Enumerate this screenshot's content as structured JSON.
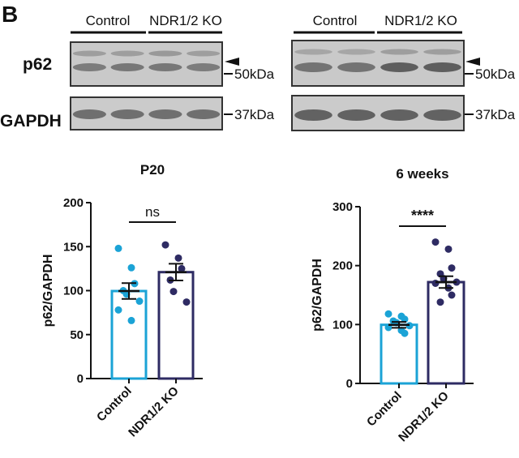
{
  "panel_label": "B",
  "blots": {
    "row_labels": [
      "p62",
      "GAPDH"
    ],
    "group_labels": [
      "Control",
      "NDR1/2 KO"
    ],
    "markers": [
      "50kDa",
      "37kDa"
    ]
  },
  "colors": {
    "control": "#1ba3d6",
    "ko": "#2e2b63",
    "axis": "#111111"
  },
  "chart_data": [
    {
      "type": "bar",
      "title": "P20",
      "ylabel": "p62/GAPDH",
      "categories": [
        "Control",
        "NDR1/2 KO"
      ],
      "values": [
        99.5,
        121
      ],
      "sem": [
        9,
        9.5
      ],
      "ylim": [
        0,
        200
      ],
      "yticks": [
        0,
        50,
        100,
        150,
        200
      ],
      "points": [
        [
          148,
          126,
          108,
          100,
          96,
          88,
          78,
          66
        ],
        [
          152,
          137,
          125,
          112,
          99,
          87
        ]
      ],
      "significance": "ns",
      "grid": false
    },
    {
      "type": "bar",
      "title": "6 weeks",
      "ylabel": "p62/GAPDH",
      "categories": [
        "Control",
        "NDR1/2 KO"
      ],
      "values": [
        99.5,
        172
      ],
      "sem": [
        5,
        10
      ],
      "ylim": [
        0,
        300
      ],
      "yticks": [
        0,
        100,
        200,
        300
      ],
      "points": [
        [
          118,
          114,
          109,
          106,
          103,
          98,
          95,
          90,
          85
        ],
        [
          240,
          228,
          196,
          186,
          178,
          172,
          170,
          162,
          150,
          138
        ]
      ],
      "significance": "****",
      "grid": false
    }
  ]
}
